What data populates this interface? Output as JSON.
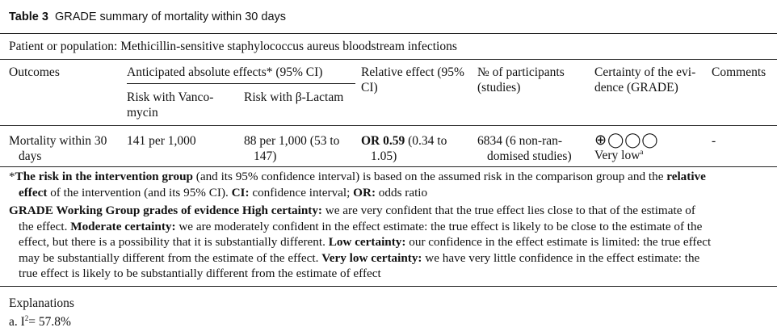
{
  "caption": {
    "label": "Table 3",
    "title": "GRADE summary of mortality within 30 days"
  },
  "population": "Patient or population: Methicillin-sensitive staphylococcus aureus bloodstream infections",
  "headers": {
    "outcomes": "Outcomes",
    "anticipated": "Anticipated absolute effects* (95% CI)",
    "relative_l1": "Relative effect (95%",
    "relative_l2": "CI)",
    "participants_l1": "№ of participants",
    "participants_l2": "(studies)",
    "certainty_l1": "Certainty of the evi-",
    "certainty_l2": "dence (GRADE)",
    "comments": "Comments",
    "risk_vanco_l1": "Risk with Vanco-",
    "risk_vanco_l2": "mycin",
    "risk_lactam": "Risk with β-Lactam"
  },
  "row": {
    "outcome_l1": "Mortality within 30",
    "outcome_l2": "days",
    "risk_vanco": "141 per 1,000",
    "risk_lactam_l1": "88 per 1,000 (53 to",
    "risk_lactam_l2": "147)",
    "relative_bold": "OR 0.59",
    "relative_rest": " (0.34 to",
    "relative_l2": "1.05)",
    "participants_l1": "6834 (6 non-ran-",
    "participants_l2": "domised studies)",
    "certainty_icons": "⊕◯◯◯",
    "certainty_text": "Very low",
    "certainty_sup": "a",
    "comments": "-"
  },
  "footnote1": {
    "star": "*",
    "b1": "The risk in the intervention group",
    "t1": " (and its 95% confidence interval) is based on the assumed risk in the comparison group and the ",
    "b2": "relative",
    "b3": "effect",
    "t2": " of the intervention (and its 95% CI). ",
    "b4": "CI:",
    "t3": " confidence interval; ",
    "b5": "OR:",
    "t4": " odds ratio"
  },
  "footnote2": {
    "b1": "GRADE Working Group grades of evidence High certainty:",
    "t1": " we are very confident that the true effect lies close to that of the estimate of",
    "t2": "the effect. ",
    "b2": "Moderate certainty:",
    "t3": " we are moderately confident in the effect estimate: the true effect is likely to be close to the estimate of the",
    "t4": "effect, but there is a possibility that it is substantially different. ",
    "b3": "Low certainty:",
    "t5": " our confidence in the effect estimate is limited: the true effect",
    "t6": "may be substantially different from the estimate of the effect. ",
    "b4": "Very low certainty:",
    "t7": " we have very little confidence in the effect estimate: the",
    "t8": "true effect is likely to be substantially different from the estimate of effect"
  },
  "explanations": {
    "heading": "Explanations",
    "item_prefix": "a. I",
    "item_sup": "2",
    "item_rest": "= 57.8%"
  }
}
